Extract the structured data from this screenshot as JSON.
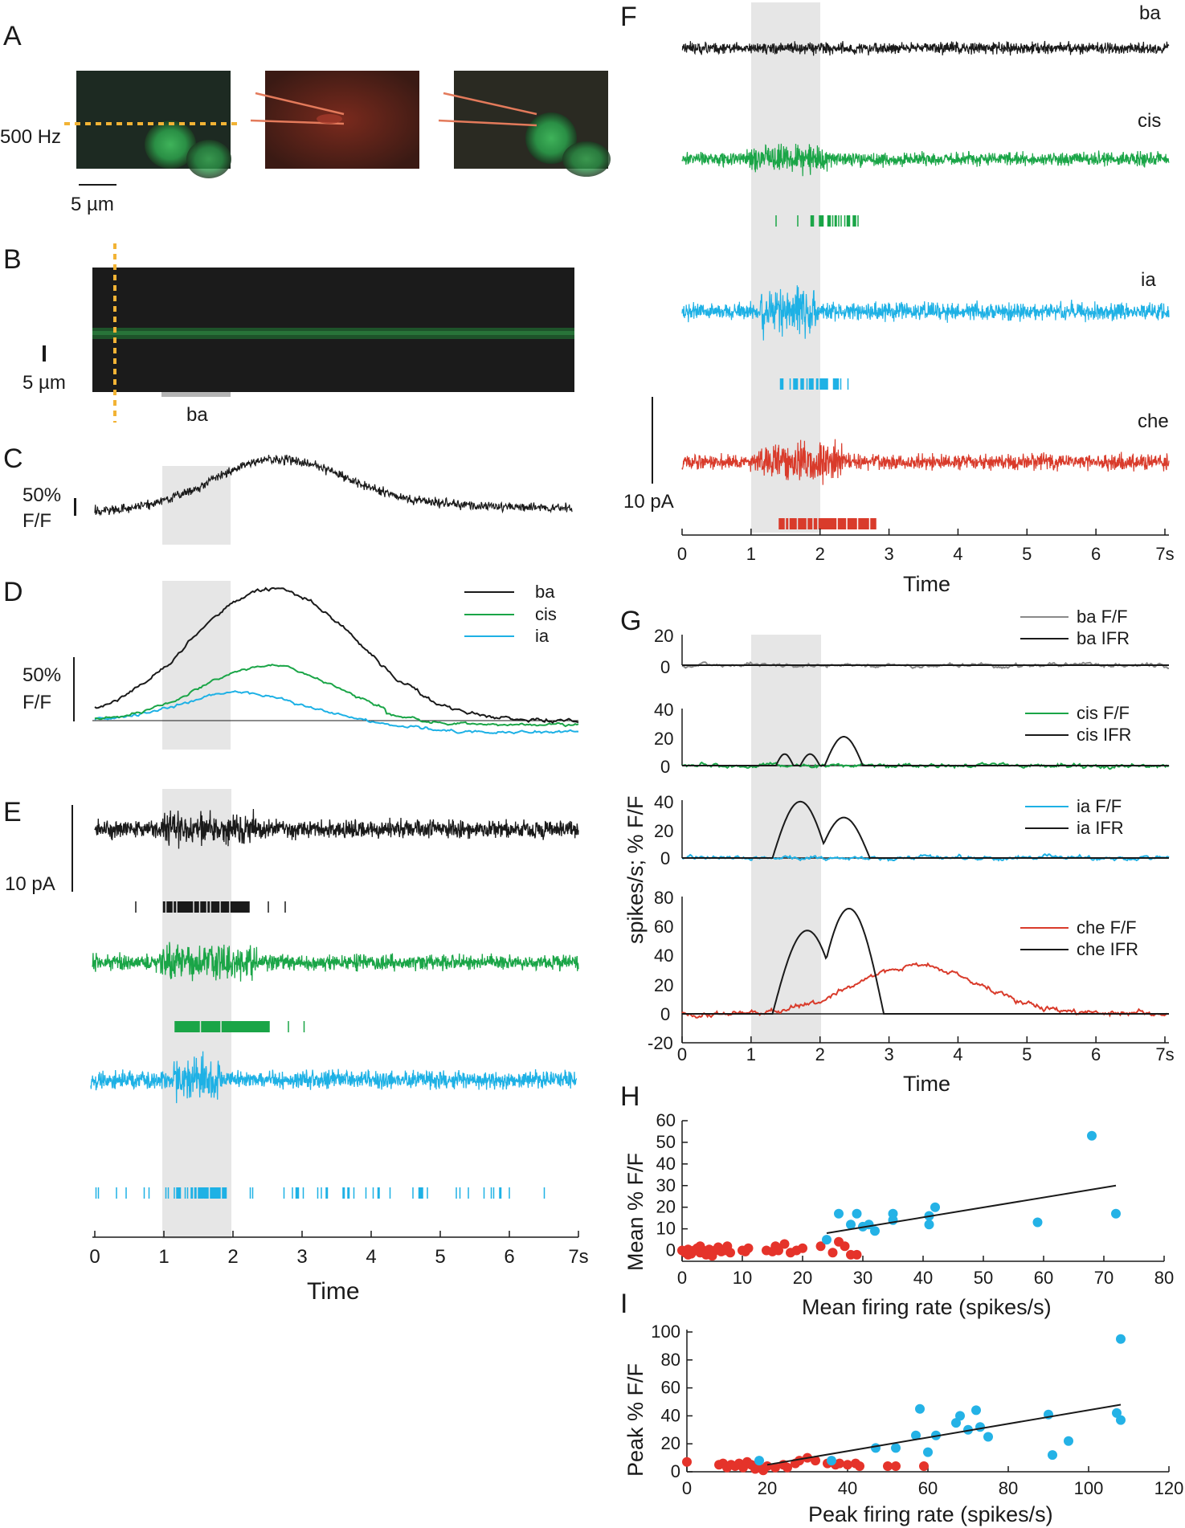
{
  "figure": {
    "panel_labels": [
      "A",
      "B",
      "C",
      "D",
      "E",
      "F",
      "G",
      "H",
      "I"
    ],
    "colors": {
      "ba": "#1a1a1a",
      "cis": "#1aa547",
      "ia": "#1eb1e5",
      "che": "#d93b2b",
      "ba_ff_gray": "#8a8a8a",
      "stim": "#e6e6e6",
      "laser": "#f2b335",
      "image_bg": "#1a1a1a"
    }
  },
  "panel_a": {
    "scan_label": "500 Hz",
    "scale_label": "5 µm"
  },
  "panel_b": {
    "scale_label": "5 µm",
    "stim_label": "ba"
  },
  "panel_c": {
    "scale_top": "50%",
    "scale_bottom": "F/F"
  },
  "panel_d": {
    "scale_top": "50%",
    "scale_bottom": "F/F",
    "legend": [
      "ba",
      "cis",
      "ia"
    ]
  },
  "panel_e": {
    "scale_label": "10 pA",
    "x_ticks": [
      "0",
      "1",
      "2",
      "3",
      "4",
      "5",
      "6",
      "7s"
    ],
    "x_label": "Time"
  },
  "panel_f": {
    "trace_labels": [
      "ba",
      "cis",
      "ia",
      "che"
    ],
    "scale_label": "10 pA",
    "x_ticks": [
      "0",
      "1",
      "2",
      "3",
      "4",
      "5",
      "6",
      "7s"
    ],
    "x_label": "Time"
  },
  "panel_g": {
    "y_label": "spikes/s; % F/F",
    "x_ticks": [
      "0",
      "1",
      "2",
      "3",
      "4",
      "5",
      "6",
      "7s"
    ],
    "x_label": "Time",
    "subplots": [
      {
        "y_ticks": [
          "20",
          "0"
        ],
        "legend": [
          "ba  F/F",
          "ba IFR"
        ]
      },
      {
        "y_ticks": [
          "40",
          "20",
          "0"
        ],
        "legend": [
          "cis  F/F",
          "cis IFR"
        ]
      },
      {
        "y_ticks": [
          "40",
          "20",
          "0"
        ],
        "legend": [
          "ia   F/F",
          "ia IFR"
        ]
      },
      {
        "y_ticks": [
          "80",
          "60",
          "40",
          "20",
          "0",
          "-20"
        ],
        "legend": [
          "che   F/F",
          "che IFR"
        ]
      }
    ]
  },
  "chart_data": [
    {
      "type": "scatter",
      "panel": "H",
      "xlabel": "Mean firing rate (spikes/s)",
      "ylabel": "Mean % F/F",
      "xlim": [
        0,
        80
      ],
      "ylim": [
        -5,
        60
      ],
      "x_ticks": [
        "0",
        "10",
        "20",
        "30",
        "40",
        "50",
        "60",
        "70",
        "80"
      ],
      "y_ticks": [
        "60",
        "50",
        "40",
        "30",
        "20",
        "10",
        "0"
      ],
      "series": [
        {
          "name": "red",
          "color": "#e5332a",
          "points": [
            [
              0,
              0
            ],
            [
              0.5,
              -1
            ],
            [
              1,
              0.5
            ],
            [
              1.5,
              -1.5
            ],
            [
              2,
              0
            ],
            [
              2.5,
              1
            ],
            [
              3,
              -1
            ],
            [
              3.5,
              0
            ],
            [
              4,
              -2
            ],
            [
              4.5,
              0.5
            ],
            [
              5,
              -1
            ],
            [
              5.5,
              0
            ],
            [
              6,
              1.5
            ],
            [
              6.5,
              -0.5
            ],
            [
              7,
              0
            ],
            [
              7.5,
              2
            ],
            [
              8,
              -1
            ],
            [
              1,
              -2
            ],
            [
              3,
              2
            ],
            [
              5,
              -2.5
            ],
            [
              10,
              0
            ],
            [
              10.5,
              -0.5
            ],
            [
              11,
              1
            ],
            [
              14,
              0
            ],
            [
              15,
              -0.5
            ],
            [
              15.5,
              2
            ],
            [
              16,
              0
            ],
            [
              17,
              3
            ],
            [
              18,
              -1
            ],
            [
              19,
              0
            ],
            [
              20,
              1
            ],
            [
              23,
              2
            ],
            [
              25,
              -1
            ],
            [
              26,
              4
            ],
            [
              27,
              2
            ],
            [
              28,
              -2
            ],
            [
              29,
              -2
            ]
          ]
        },
        {
          "name": "blue",
          "color": "#24b2e6",
          "points": [
            [
              24,
              5
            ],
            [
              26,
              17
            ],
            [
              28,
              12
            ],
            [
              29,
              17
            ],
            [
              30,
              11
            ],
            [
              31,
              12
            ],
            [
              32,
              9
            ],
            [
              35,
              14
            ],
            [
              35,
              17
            ],
            [
              41,
              12
            ],
            [
              41,
              16
            ],
            [
              42,
              20
            ],
            [
              59,
              13
            ],
            [
              68,
              53
            ],
            [
              72,
              17
            ]
          ]
        }
      ],
      "fit_line": {
        "x": [
          24,
          72
        ],
        "y": [
          8,
          30
        ]
      }
    },
    {
      "type": "scatter",
      "panel": "I",
      "xlabel": "Peak firing rate (spikes/s)",
      "ylabel": "Peak % F/F",
      "xlim": [
        0,
        120
      ],
      "ylim": [
        0,
        100
      ],
      "x_ticks": [
        "0",
        "20",
        "40",
        "60",
        "80",
        "100",
        "120"
      ],
      "y_ticks": [
        "100",
        "80",
        "60",
        "40",
        "20",
        "0"
      ],
      "series": [
        {
          "name": "red",
          "color": "#e5332a",
          "points": [
            [
              0,
              7
            ],
            [
              8,
              5
            ],
            [
              9,
              6
            ],
            [
              10,
              3
            ],
            [
              11,
              5
            ],
            [
              12,
              4
            ],
            [
              13,
              6
            ],
            [
              14,
              3
            ],
            [
              15,
              7
            ],
            [
              16,
              5
            ],
            [
              17,
              2
            ],
            [
              18,
              3
            ],
            [
              19,
              1
            ],
            [
              20,
              4
            ],
            [
              22,
              3
            ],
            [
              24,
              5
            ],
            [
              25,
              3
            ],
            [
              27,
              6
            ],
            [
              28,
              8
            ],
            [
              30,
              10
            ],
            [
              32,
              8
            ],
            [
              35,
              6
            ],
            [
              36,
              7
            ],
            [
              37,
              5
            ],
            [
              38,
              6
            ],
            [
              40,
              5
            ],
            [
              42,
              6
            ],
            [
              43,
              4
            ],
            [
              50,
              4
            ],
            [
              52,
              4
            ],
            [
              59,
              4
            ]
          ]
        },
        {
          "name": "blue",
          "color": "#24b2e6",
          "points": [
            [
              18,
              8
            ],
            [
              36,
              8
            ],
            [
              47,
              17
            ],
            [
              52,
              17
            ],
            [
              57,
              26
            ],
            [
              58,
              45
            ],
            [
              60,
              14
            ],
            [
              62,
              26
            ],
            [
              67,
              35
            ],
            [
              68,
              40
            ],
            [
              70,
              30
            ],
            [
              72,
              44
            ],
            [
              73,
              32
            ],
            [
              75,
              25
            ],
            [
              90,
              41
            ],
            [
              91,
              12
            ],
            [
              95,
              22
            ],
            [
              107,
              42
            ],
            [
              108,
              37
            ],
            [
              108,
              95
            ]
          ]
        }
      ],
      "fit_line": {
        "x": [
          20,
          108
        ],
        "y": [
          5,
          48
        ]
      }
    }
  ]
}
